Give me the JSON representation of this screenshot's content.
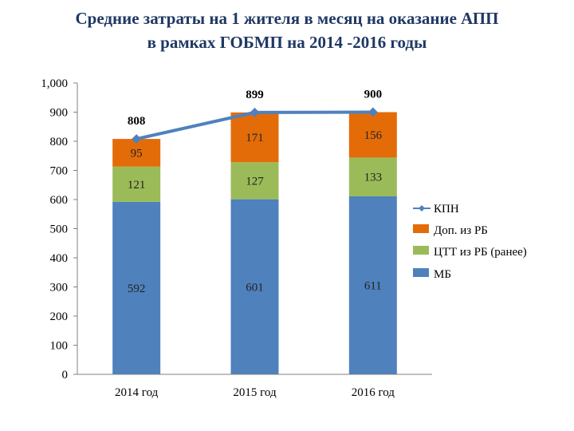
{
  "title_lines": [
    "Средние затраты на 1 жителя в месяц на оказание АПП",
    "в рамках ГОБМП  на 2014 -2016 годы"
  ],
  "colors": {
    "mb": "#4f81bd",
    "ctt": "#9bbb59",
    "dop": "#e36c09",
    "kpn": "#4f81bd",
    "axis": "#808080",
    "title": "#1f3864"
  },
  "chart_data": {
    "type": "bar",
    "stacked": true,
    "categories": [
      "2014 год",
      "2015 год",
      "2016 год"
    ],
    "series": [
      {
        "name": "МБ",
        "key": "mb",
        "values": [
          592,
          601,
          611
        ]
      },
      {
        "name": "ЦТТ из РБ (ранее)",
        "key": "ctt",
        "values": [
          121,
          127,
          133
        ]
      },
      {
        "name": "Доп. из РБ",
        "key": "dop",
        "values": [
          95,
          171,
          156
        ]
      }
    ],
    "line_series": {
      "name": "КПН",
      "key": "kpn",
      "values": [
        808,
        899,
        900
      ]
    },
    "y_ticks": [
      "0",
      "100",
      "200",
      "300",
      "400",
      "500",
      "600",
      "700",
      "800",
      "900",
      "1,000"
    ],
    "ylim": [
      0,
      1000
    ],
    "legend_position": "right",
    "grid": false
  }
}
